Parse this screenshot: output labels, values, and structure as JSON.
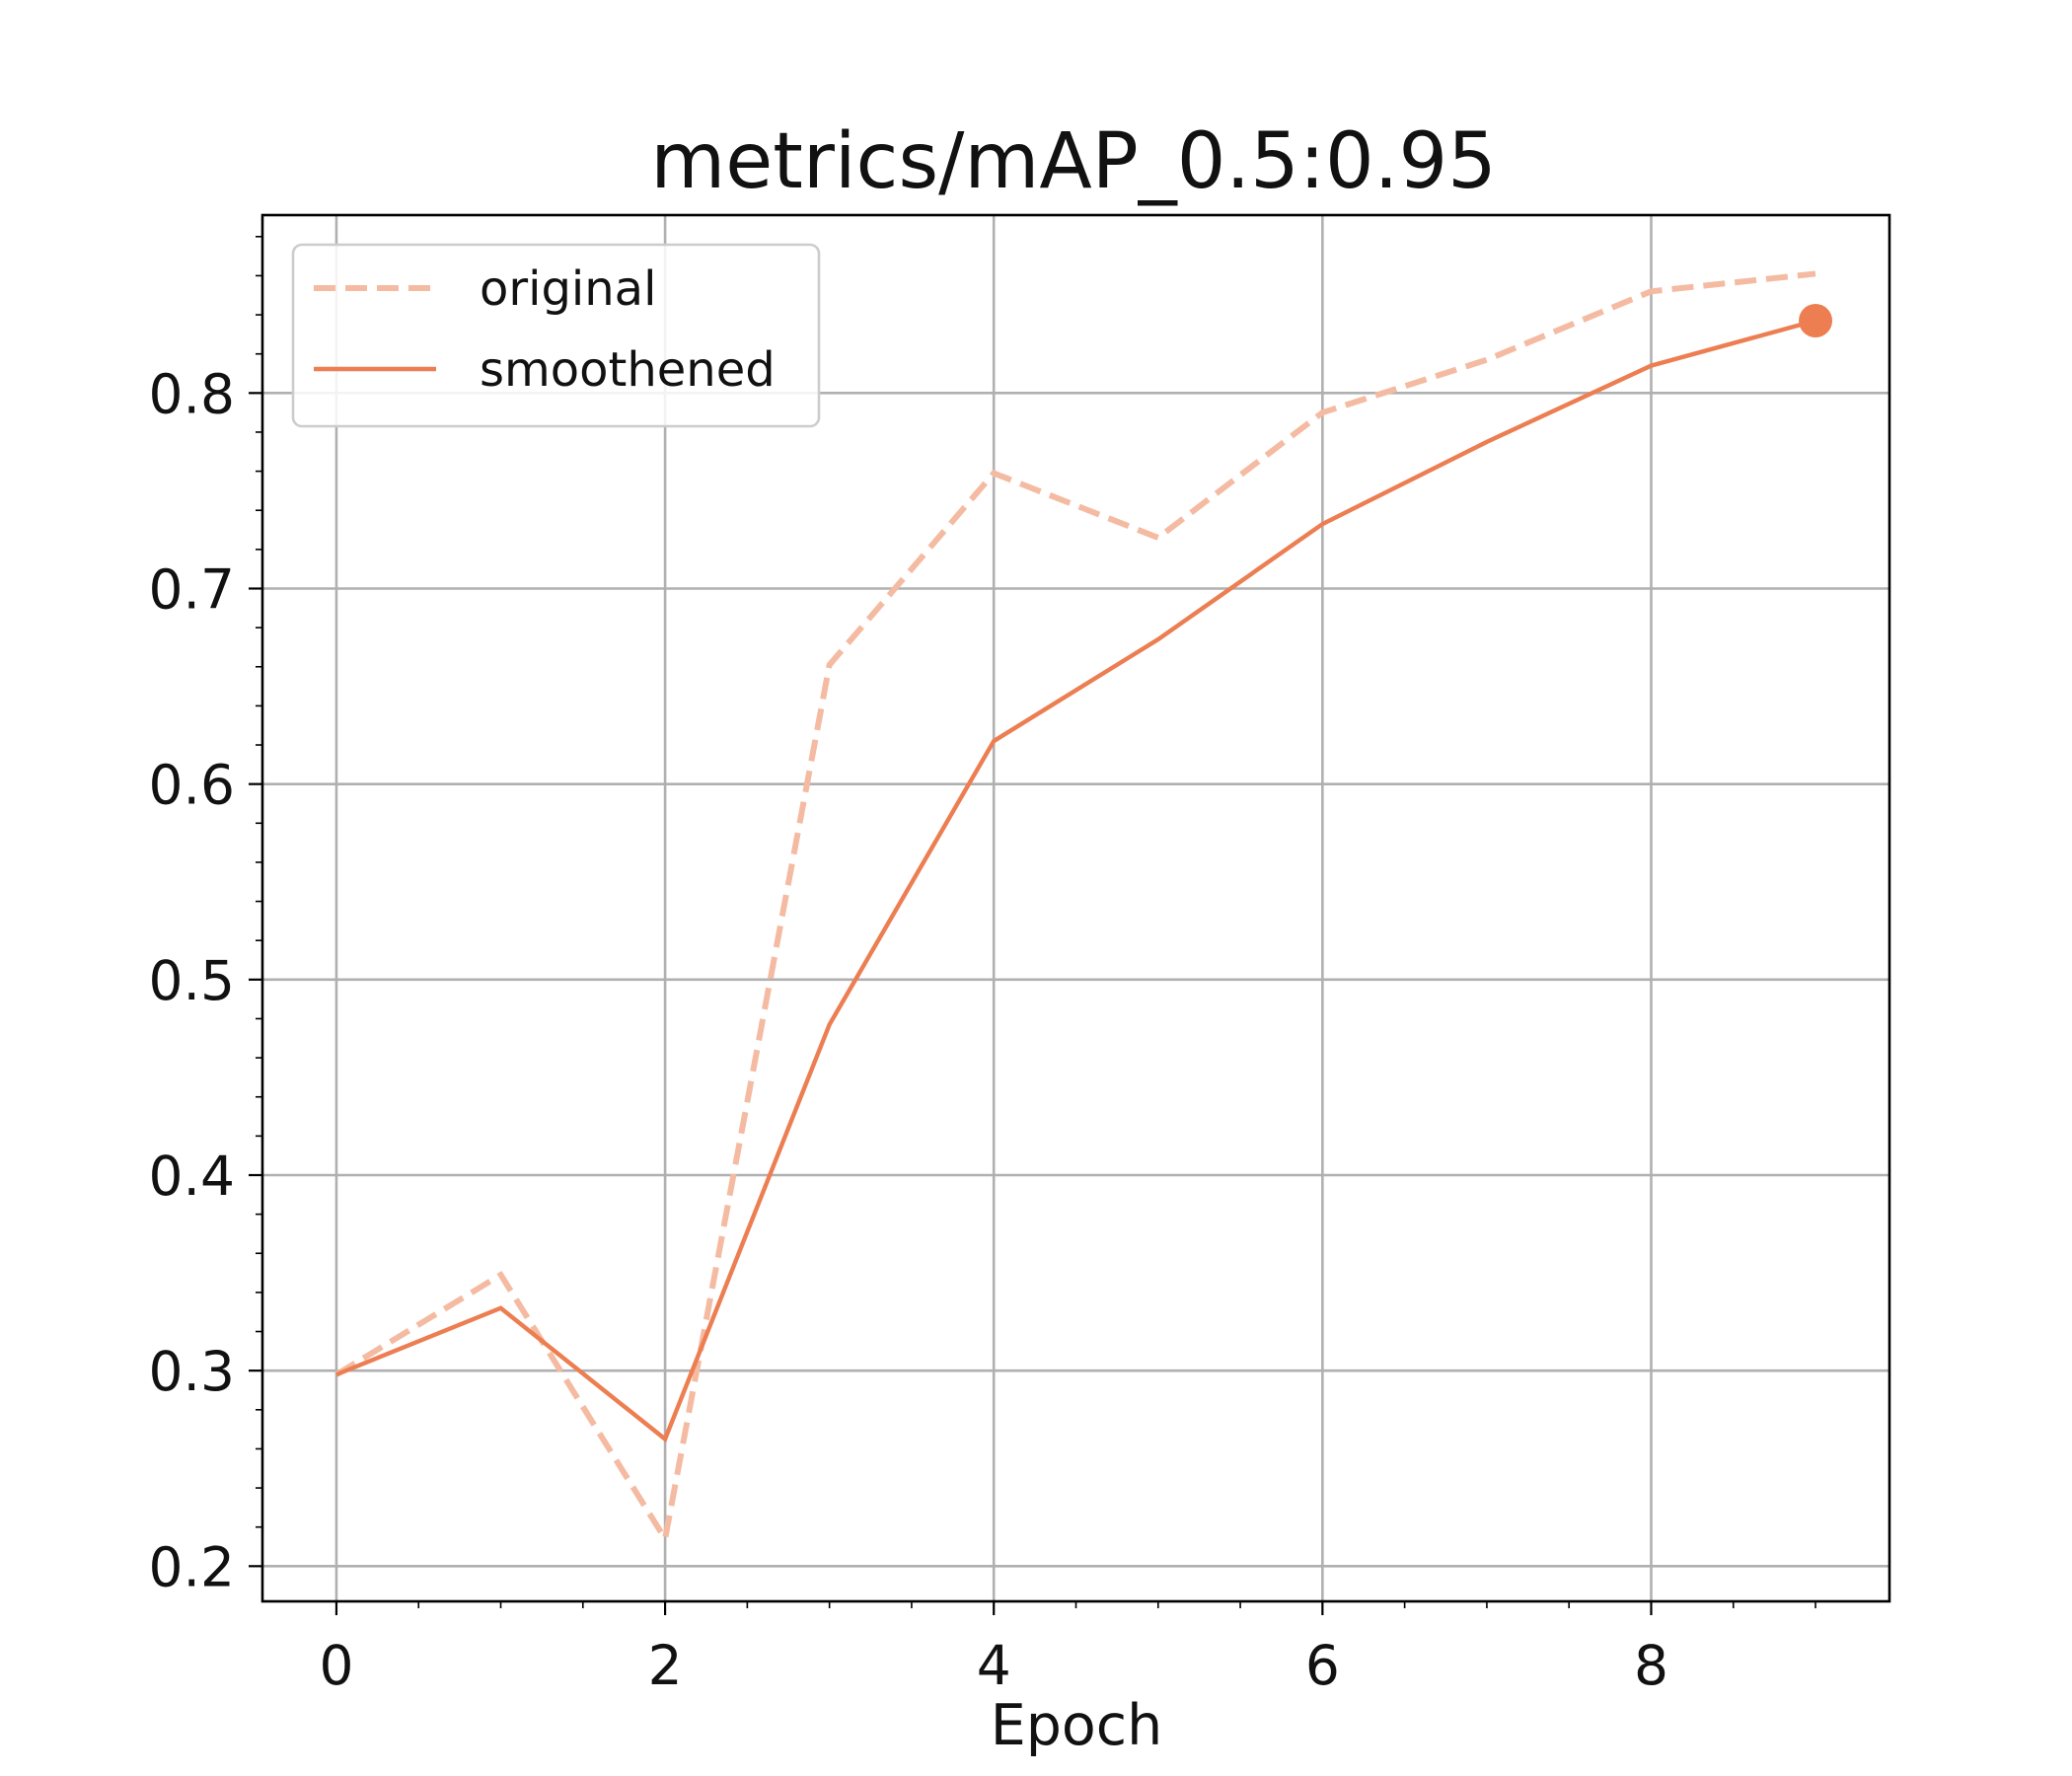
{
  "chart_data": {
    "type": "line",
    "title": "metrics/mAP_0.5:0.95",
    "xlabel": "Epoch",
    "ylabel": "",
    "x": [
      0,
      1,
      2,
      3,
      4,
      5,
      6,
      7,
      8,
      9
    ],
    "series": [
      {
        "name": "original",
        "style": "dashed",
        "color": "#f4bba2",
        "values": [
          0.298,
          0.349,
          0.214,
          0.661,
          0.759,
          0.726,
          0.79,
          0.817,
          0.852,
          0.861
        ]
      },
      {
        "name": "smoothened",
        "style": "solid",
        "color": "#ec7e52",
        "values": [
          0.298,
          0.332,
          0.265,
          0.477,
          0.622,
          0.674,
          0.733,
          0.775,
          0.814,
          0.837
        ]
      }
    ],
    "end_marker": {
      "series": "smoothened",
      "x": 9,
      "y": 0.837,
      "color": "#ec7e52"
    },
    "xlim": [
      -0.45,
      9.45
    ],
    "ylim": [
      0.182,
      0.891
    ],
    "xticks": [
      0,
      2,
      4,
      6,
      8
    ],
    "yticks": [
      0.2,
      0.3,
      0.4,
      0.5,
      0.6,
      0.7,
      0.8
    ],
    "xtick_labels": [
      "0",
      "2",
      "4",
      "6",
      "8"
    ],
    "ytick_labels": [
      "0.2",
      "0.3",
      "0.4",
      "0.5",
      "0.6",
      "0.7",
      "0.8"
    ],
    "grid": true,
    "legend": "top-left"
  }
}
